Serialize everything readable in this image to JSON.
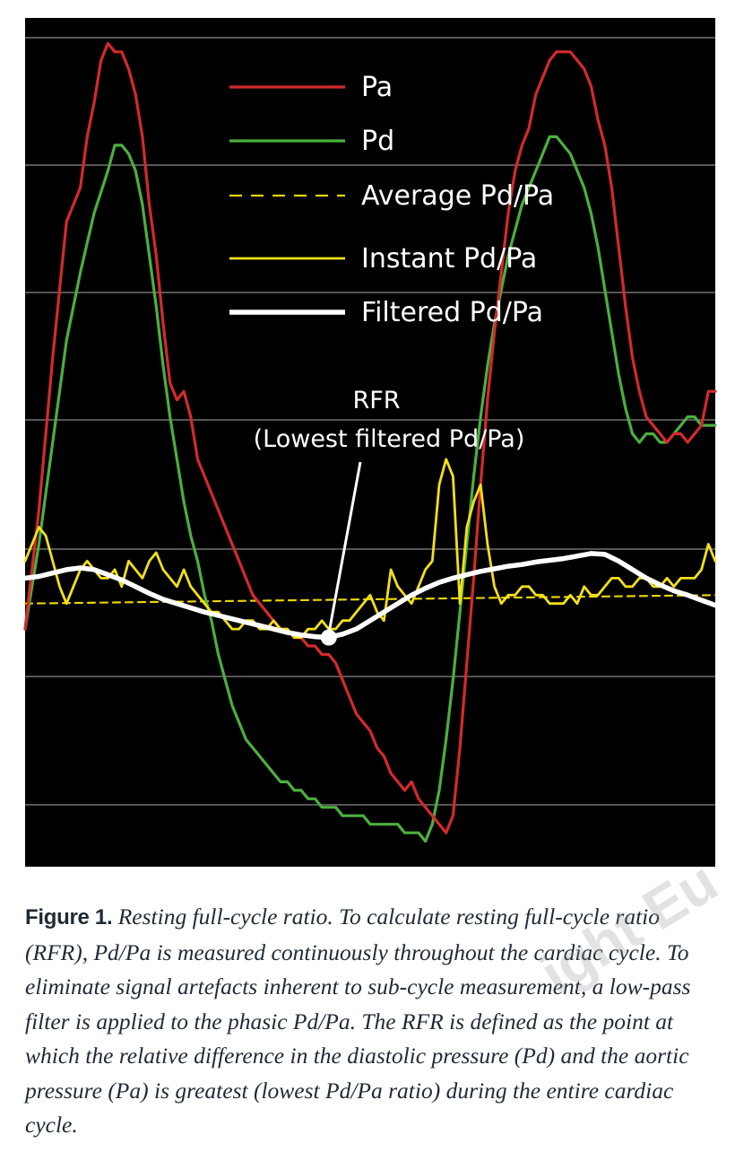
{
  "figure": {
    "caption_label": "Figure 1.",
    "caption_text": "Resting full-cycle ratio. To calculate resting full-cycle ratio (RFR), Pd/Pa is measured continuously throughout the cardiac cycle. To eliminate signal artefacts inherent to sub-cycle measurement, a low-pass filter is applied to the phasic Pd/Pa. The RFR is defined as the point at which the relative difference in the diastolic pressure (Pd) and the aortic pressure (Pa) is greatest (lowest Pd/Pa ratio) during the entire cardiac cycle."
  },
  "watermark": "ight Eu",
  "colors": {
    "background": "#000000",
    "grid": "#8a8a8a",
    "pa": "#d42a2a",
    "pd": "#4caf3e",
    "average": "#e8d200",
    "instant": "#f2e018",
    "filtered": "#ffffff"
  },
  "chart_data": {
    "type": "line",
    "title": "",
    "xlabel": "",
    "ylabel": "",
    "xlim": [
      0,
      100
    ],
    "ylim": [
      0,
      100
    ],
    "grid": true,
    "legend_position": "top-center",
    "legend": [
      {
        "label": "Pa",
        "style": "solid",
        "series": "pa"
      },
      {
        "label": "Pd",
        "style": "solid",
        "series": "pd"
      },
      {
        "label": "Average Pd/Pa",
        "style": "dashed",
        "series": "average"
      },
      {
        "label": "Instant Pd/Pa",
        "style": "solid",
        "series": "instant"
      },
      {
        "label": "Filtered Pd/Pa",
        "style": "thick",
        "series": "filtered"
      }
    ],
    "annotation": {
      "title": "RFR",
      "subtitle": "(Lowest filtered Pd/Pa)",
      "point": [
        44,
        27
      ]
    },
    "series": [
      {
        "key": "pa",
        "x": [
          0,
          2,
          4,
          6,
          8,
          9,
          10,
          11,
          12,
          13,
          14,
          15,
          16,
          17,
          18,
          19,
          20,
          21,
          22,
          23,
          24,
          25,
          26,
          27,
          28,
          29,
          30,
          31,
          32,
          33,
          34,
          35,
          36,
          37,
          38,
          39,
          40,
          41,
          42,
          43,
          44,
          45,
          46,
          47,
          48,
          49,
          50,
          51,
          52,
          53,
          54,
          55,
          56,
          57,
          58,
          59,
          60,
          61,
          62,
          63,
          64,
          65,
          66,
          67,
          68,
          69,
          70,
          71,
          72,
          73,
          74,
          75,
          76,
          77,
          78,
          79,
          80,
          81,
          82,
          83,
          84,
          85,
          86,
          87,
          88,
          89,
          90,
          91,
          92,
          93,
          94,
          95,
          96,
          97,
          98,
          99,
          100
        ],
        "y": [
          28,
          42,
          60,
          76,
          80,
          86,
          90,
          95,
          97,
          96,
          96,
          94,
          91,
          86,
          78,
          72,
          64,
          57,
          55,
          56,
          53,
          48,
          46,
          44,
          42,
          40,
          38,
          36,
          34,
          32,
          31,
          30,
          29,
          28,
          28,
          27,
          27,
          26,
          26,
          25,
          25,
          24,
          22,
          20,
          18,
          17,
          16,
          14,
          13,
          11,
          10,
          9,
          10,
          8,
          7,
          6,
          5,
          4,
          6,
          14,
          24,
          34,
          45,
          55,
          63,
          70,
          77,
          82,
          85,
          87,
          91,
          93,
          95,
          96,
          96,
          96,
          95,
          94,
          92,
          88,
          85,
          80,
          73,
          66,
          60,
          56,
          53,
          52,
          51,
          50,
          51,
          51,
          50,
          51,
          52,
          56,
          56
        ]
      },
      {
        "key": "pd",
        "x": [
          0,
          2,
          4,
          6,
          8,
          10,
          12,
          13,
          14,
          15,
          16,
          17,
          18,
          19,
          20,
          21,
          22,
          23,
          24,
          25,
          26,
          27,
          28,
          29,
          30,
          31,
          32,
          33,
          34,
          35,
          36,
          37,
          38,
          39,
          40,
          41,
          42,
          43,
          44,
          45,
          46,
          47,
          48,
          49,
          50,
          51,
          52,
          53,
          54,
          55,
          56,
          57,
          58,
          59,
          60,
          61,
          62,
          63,
          64,
          65,
          66,
          67,
          68,
          69,
          70,
          71,
          72,
          73,
          74,
          75,
          76,
          77,
          78,
          79,
          80,
          81,
          82,
          83,
          84,
          85,
          86,
          87,
          88,
          89,
          90,
          91,
          92,
          93,
          94,
          95,
          96,
          97,
          98,
          99,
          100
        ],
        "y": [
          28,
          38,
          50,
          62,
          70,
          77,
          82,
          85,
          85,
          84,
          82,
          78,
          72,
          66,
          59,
          53,
          48,
          43,
          39,
          36,
          32,
          29,
          25,
          22,
          19,
          17,
          15,
          14,
          13,
          12,
          11,
          10,
          10,
          9,
          9,
          8,
          8,
          7,
          7,
          7,
          6,
          6,
          6,
          6,
          5,
          5,
          5,
          5,
          5,
          4,
          4,
          4,
          3,
          5,
          9,
          15,
          22,
          30,
          38,
          46,
          53,
          59,
          64,
          68,
          72,
          75,
          78,
          80,
          82,
          84,
          86,
          86,
          85,
          84,
          82,
          80,
          77,
          73,
          68,
          63,
          58,
          54,
          51,
          50,
          51,
          51,
          50,
          50,
          51,
          52,
          53,
          53,
          52,
          52,
          52
        ]
      },
      {
        "key": "average",
        "x": [
          0,
          100
        ],
        "y": [
          31,
          32
        ]
      },
      {
        "key": "instant",
        "x": [
          0,
          2,
          3,
          4,
          5,
          6,
          7,
          8,
          9,
          10,
          11,
          12,
          13,
          14,
          15,
          16,
          17,
          18,
          19,
          20,
          21,
          22,
          23,
          24,
          25,
          26,
          27,
          28,
          29,
          30,
          31,
          32,
          33,
          34,
          35,
          36,
          37,
          38,
          39,
          40,
          41,
          42,
          43,
          44,
          45,
          46,
          47,
          48,
          49,
          50,
          51,
          52,
          53,
          54,
          55,
          56,
          57,
          58,
          59,
          60,
          61,
          62,
          63,
          64,
          65,
          66,
          67,
          68,
          69,
          70,
          71,
          72,
          73,
          74,
          75,
          76,
          77,
          78,
          79,
          80,
          81,
          82,
          83,
          84,
          85,
          86,
          87,
          88,
          89,
          90,
          91,
          92,
          93,
          94,
          95,
          96,
          97,
          98,
          99,
          100
        ],
        "y": [
          36,
          40,
          39,
          36,
          33,
          31,
          33,
          35,
          36,
          35,
          34,
          34,
          35,
          33,
          36,
          35,
          34,
          36,
          37,
          35,
          34,
          33,
          35,
          33,
          32,
          31,
          30,
          30,
          29,
          28,
          28,
          29,
          29,
          28,
          28,
          29,
          28,
          28,
          27,
          27,
          28,
          28,
          29,
          28,
          28,
          29,
          29,
          30,
          31,
          32,
          30,
          29,
          35,
          33,
          32,
          31,
          33,
          35,
          36,
          45,
          48,
          46,
          31,
          40,
          43,
          45,
          38,
          33,
          31,
          32,
          32,
          33,
          33,
          32,
          32,
          31,
          31,
          31,
          32,
          31,
          33,
          32,
          32,
          33,
          34,
          34,
          33,
          33,
          34,
          34,
          33,
          33,
          34,
          33,
          34,
          34,
          34,
          35,
          38,
          36
        ]
      },
      {
        "key": "filtered",
        "x": [
          0,
          2,
          4,
          6,
          8,
          10,
          12,
          14,
          16,
          18,
          20,
          22,
          24,
          26,
          28,
          30,
          32,
          34,
          36,
          38,
          40,
          42,
          44,
          46,
          48,
          50,
          52,
          54,
          56,
          58,
          60,
          62,
          64,
          66,
          68,
          70,
          72,
          74,
          76,
          78,
          80,
          82,
          84,
          86,
          88,
          90,
          92,
          94,
          96,
          98,
          100
        ],
        "y": [
          34,
          34.2,
          34.6,
          35,
          35.2,
          35,
          34.4,
          33.8,
          33,
          32.2,
          31.5,
          31,
          30.5,
          30,
          29.6,
          29.2,
          28.8,
          28.4,
          28,
          27.6,
          27.3,
          27.1,
          27,
          27.4,
          28,
          29,
          30,
          31,
          32,
          32.8,
          33.5,
          34,
          34.4,
          34.8,
          35.1,
          35.4,
          35.6,
          35.9,
          36.1,
          36.3,
          36.6,
          36.9,
          36.8,
          36,
          35,
          34,
          33.2,
          32.5,
          32,
          31.4,
          30.8
        ]
      }
    ]
  }
}
